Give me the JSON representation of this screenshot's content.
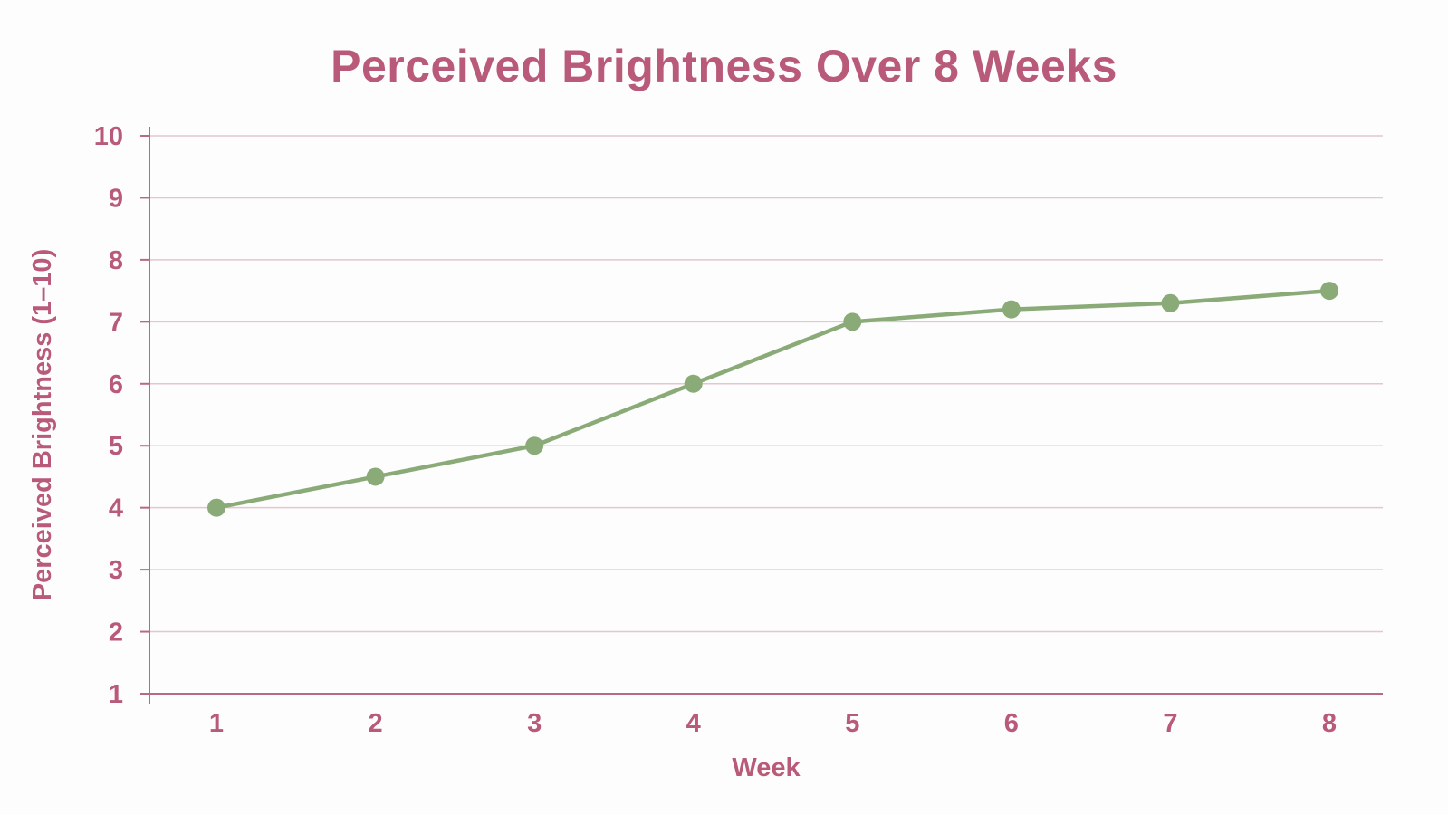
{
  "colors": {
    "text": "#b85a78",
    "axis": "#b86a85",
    "grid": "#e3c6d0",
    "line": "#8aab78",
    "background": "#fdfdfd"
  },
  "chart_data": {
    "type": "line",
    "title": "Perceived Brightness Over 8 Weeks",
    "xlabel": "Week",
    "ylabel": "Perceived Brightness (1–10)",
    "x": [
      "1",
      "2",
      "3",
      "4",
      "5",
      "6",
      "7",
      "8"
    ],
    "series": [
      {
        "values": [
          4.0,
          4.5,
          5.0,
          6.0,
          7.0,
          7.2,
          7.3,
          7.5
        ]
      }
    ],
    "ylim": [
      1,
      10
    ],
    "yticks": [
      1,
      2,
      3,
      4,
      5,
      6,
      7,
      8,
      9,
      10
    ],
    "grid": true,
    "legend": "none"
  }
}
